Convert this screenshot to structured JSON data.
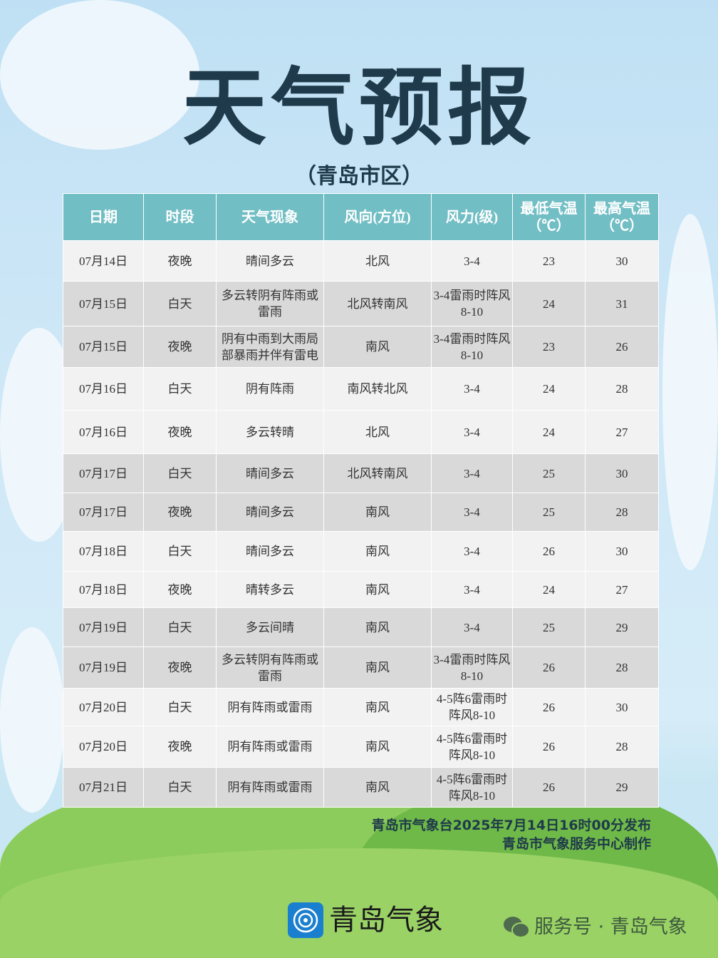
{
  "title": "天气预报",
  "subtitle": "（青岛市区）",
  "table": {
    "headers": [
      "日期",
      "时段",
      "天气现象",
      "风向(方位)",
      "风力(级)",
      "最低气温（℃）",
      "最高气温（℃）"
    ],
    "rows": [
      [
        "07月14日",
        "夜晚",
        "晴间多云",
        "北风",
        "3-4",
        "23",
        "30"
      ],
      [
        "07月15日",
        "白天",
        "多云转阴有阵雨或雷雨",
        "北风转南风",
        "3-4雷雨时阵风8-10",
        "24",
        "31"
      ],
      [
        "07月15日",
        "夜晚",
        "阴有中雨到大雨局部暴雨并伴有雷电",
        "南风",
        "3-4雷雨时阵风8-10",
        "23",
        "26"
      ],
      [
        "07月16日",
        "白天",
        "阴有阵雨",
        "南风转北风",
        "3-4",
        "24",
        "28"
      ],
      [
        "07月16日",
        "夜晚",
        "多云转晴",
        "北风",
        "3-4",
        "24",
        "27"
      ],
      [
        "07月17日",
        "白天",
        "晴间多云",
        "北风转南风",
        "3-4",
        "25",
        "30"
      ],
      [
        "07月17日",
        "夜晚",
        "晴间多云",
        "南风",
        "3-4",
        "25",
        "28"
      ],
      [
        "07月18日",
        "白天",
        "晴间多云",
        "南风",
        "3-4",
        "26",
        "30"
      ],
      [
        "07月18日",
        "夜晚",
        "晴转多云",
        "南风",
        "3-4",
        "24",
        "27"
      ],
      [
        "07月19日",
        "白天",
        "多云间晴",
        "南风",
        "3-4",
        "25",
        "29"
      ],
      [
        "07月19日",
        "夜晚",
        "多云转阴有阵雨或雷雨",
        "南风",
        "3-4雷雨时阵风8-10",
        "26",
        "28"
      ],
      [
        "07月20日",
        "白天",
        "阴有阵雨或雷雨",
        "南风",
        "4-5阵6雷雨时阵风8-10",
        "26",
        "30"
      ],
      [
        "07月20日",
        "夜晚",
        "阴有阵雨或雷雨",
        "南风",
        "4-5阵6雷雨时阵风8-10",
        "26",
        "28"
      ],
      [
        "07月21日",
        "白天",
        "阴有阵雨或雷雨",
        "南风",
        "4-5阵6雷雨时阵风8-10",
        "26",
        "29"
      ]
    ]
  },
  "credits": {
    "line1": "青岛市气象台2025年7月14日16时00分发布",
    "line2": "青岛市气象服务中心制作"
  },
  "logo": {
    "text": "青岛气象",
    "icon": "cloud-swirl-icon",
    "color": "#1a7fcf"
  },
  "wechat": {
    "text": "服务号 · 青岛气象",
    "icon": "wechat-icon"
  },
  "colors": {
    "header": "#72bec5",
    "row_light": "#f2f2f2",
    "row_dark": "#d9d9d9",
    "title": "#1f3a4a"
  }
}
